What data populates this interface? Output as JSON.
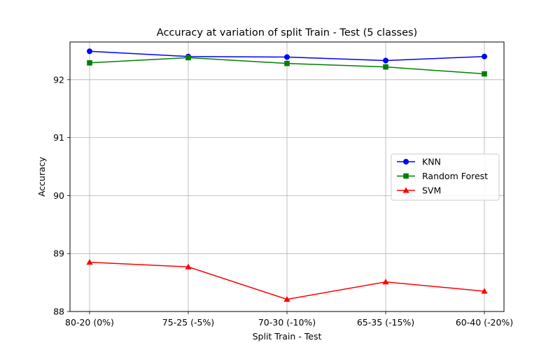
{
  "chart_data": {
    "type": "line",
    "title": "Accuracy at variation of split Train - Test (5 classes)",
    "xlabel": "Split Train - Test",
    "ylabel": "Accuracy",
    "categories": [
      "80-20 (0%)",
      "75-25 (-5%)",
      "70-30 (-10%)",
      "65-35 (-15%)",
      "60-40 (-20%)"
    ],
    "ylim": [
      88,
      92.65
    ],
    "yticks": [
      88,
      89,
      90,
      91,
      92
    ],
    "grid": true,
    "legend_position": "center-right",
    "series": [
      {
        "name": "KNN",
        "color": "#0000ff",
        "marker": "circle",
        "values": [
          92.49,
          92.4,
          92.39,
          92.33,
          92.4
        ]
      },
      {
        "name": "Random Forest",
        "color": "#008000",
        "marker": "square",
        "values": [
          92.29,
          92.38,
          92.28,
          92.22,
          92.1
        ]
      },
      {
        "name": "SVM",
        "color": "#ff0000",
        "marker": "triangle",
        "values": [
          88.85,
          88.77,
          88.21,
          88.51,
          88.35
        ]
      }
    ]
  }
}
